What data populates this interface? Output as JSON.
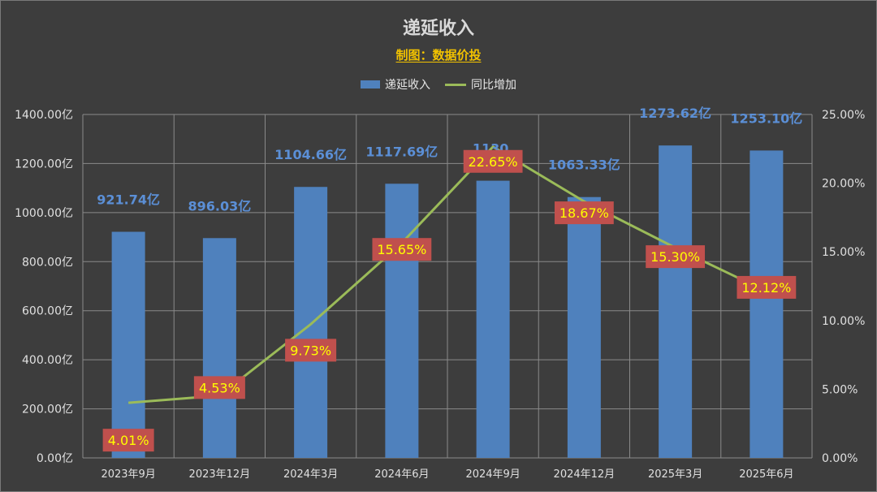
{
  "chart_data": {
    "type": "bar",
    "title": "递延收入",
    "subtitle": "制图：数据价投",
    "categories": [
      "2023年9月",
      "2023年12月",
      "2024年3月",
      "2024年6月",
      "2024年9月",
      "2024年12月",
      "2025年3月",
      "2025年6月"
    ],
    "series": [
      {
        "name": "递延收入",
        "type": "bar",
        "axis": "left",
        "values": [
          921.74,
          896.03,
          1104.66,
          1117.69,
          1130.0,
          1063.33,
          1273.62,
          1253.1
        ],
        "labels": [
          "921.74亿",
          "896.03亿",
          "1104.66亿",
          "1117.69亿",
          "1130.",
          "1063.33亿",
          "1273.62亿",
          "1253.10亿"
        ],
        "color": "#4f81bd"
      },
      {
        "name": "同比增加",
        "type": "line",
        "axis": "right",
        "values": [
          4.01,
          4.53,
          9.73,
          15.65,
          22.65,
          18.67,
          15.3,
          12.12
        ],
        "labels": [
          "4.01%",
          "4.53%",
          "9.73%",
          "15.65%",
          "22.65%",
          "18.67%",
          "15.30%",
          "12.12%"
        ],
        "color": "#9bbb59"
      }
    ],
    "y_left": {
      "ylim": [
        0,
        1400
      ],
      "ticks": [
        "0.00亿",
        "200.00亿",
        "400.00亿",
        "600.00亿",
        "800.00亿",
        "1000.00亿",
        "1200.00亿",
        "1400.00亿"
      ]
    },
    "y_right": {
      "ylim": [
        0,
        25
      ],
      "ticks": [
        "0.00%",
        "5.00%",
        "10.00%",
        "15.00%",
        "20.00%",
        "25.00%"
      ]
    },
    "grid": true,
    "legend_position": "top",
    "colors": {
      "background": "#3d3d3d",
      "grid": "#8a8a8a",
      "bar": "#4f81bd",
      "line": "#9bbb59",
      "bar_label": "#5b8fd6",
      "line_label_text": "#ffff00",
      "line_label_box": "#c0504d",
      "title": "#d9d9d9",
      "subtitle": "#f2c200"
    }
  }
}
